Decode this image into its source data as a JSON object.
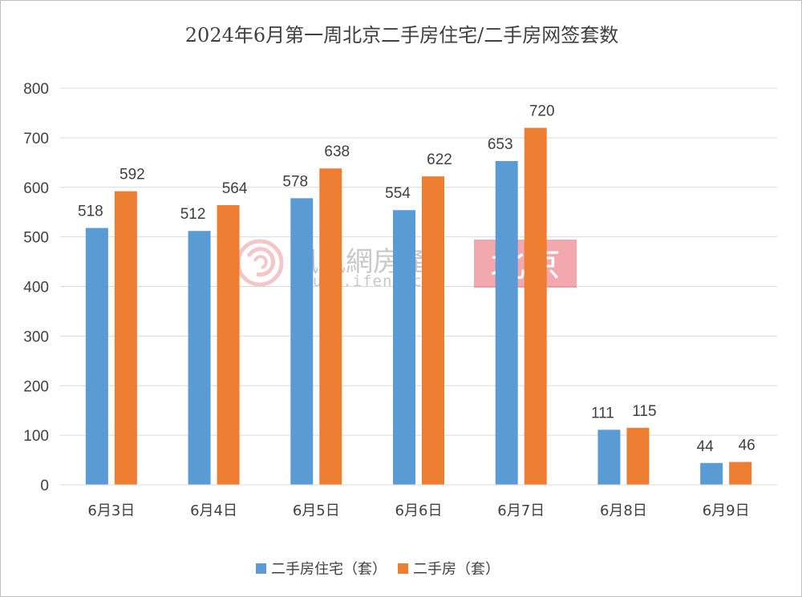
{
  "chart_data": {
    "type": "bar",
    "title": "2024年6月第一周北京二手房住宅/二手房网签套数",
    "categories": [
      "6月3日",
      "6月4日",
      "6月5日",
      "6月6日",
      "6月7日",
      "6月8日",
      "6月9日"
    ],
    "series": [
      {
        "name": "二手房住宅（套）",
        "values": [
          518,
          512,
          578,
          554,
          653,
          111,
          44
        ],
        "color": "#5b9bd5"
      },
      {
        "name": "二手房（套）",
        "values": [
          592,
          564,
          638,
          622,
          720,
          115,
          46
        ],
        "color": "#ed7d31"
      }
    ],
    "ylim": [
      0,
      800
    ],
    "yticks": [
      0,
      100,
      200,
      300,
      400,
      500,
      600,
      700,
      800
    ],
    "grid": true,
    "legend": "bottom"
  },
  "watermark": {
    "brand": "鳳凰網房產",
    "url": "house.ifeng.com",
    "badge": "北京",
    "badge_color": "#e8606a"
  }
}
